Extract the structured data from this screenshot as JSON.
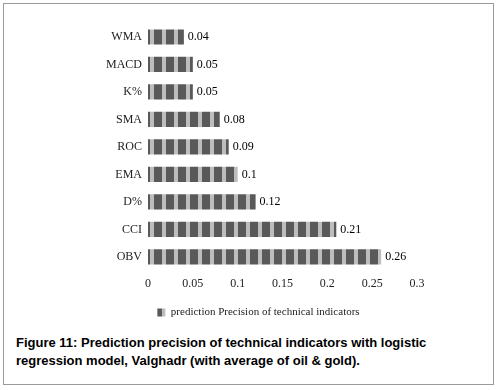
{
  "chart_data": {
    "type": "bar",
    "orientation": "horizontal",
    "caption": "Figure 11: Prediction precision of technical indicators with logistic regression model, Valghadr (with average of oil & gold).",
    "categories": [
      "WMA",
      "MACD",
      "K%",
      "SMA",
      "ROC",
      "EMA",
      "D%",
      "CCI",
      "OBV"
    ],
    "series": [
      {
        "name": "prediction Precision of technical indicators",
        "color": "#595959",
        "values": [
          0.04,
          0.05,
          0.05,
          0.08,
          0.09,
          0.1,
          0.12,
          0.21,
          0.26
        ]
      }
    ],
    "xlim": [
      0,
      0.3
    ],
    "xticks": [
      0,
      0.05,
      0.1,
      0.15,
      0.2,
      0.25,
      0.3
    ],
    "grid": false,
    "data_labels": true,
    "legend": "bottom"
  }
}
